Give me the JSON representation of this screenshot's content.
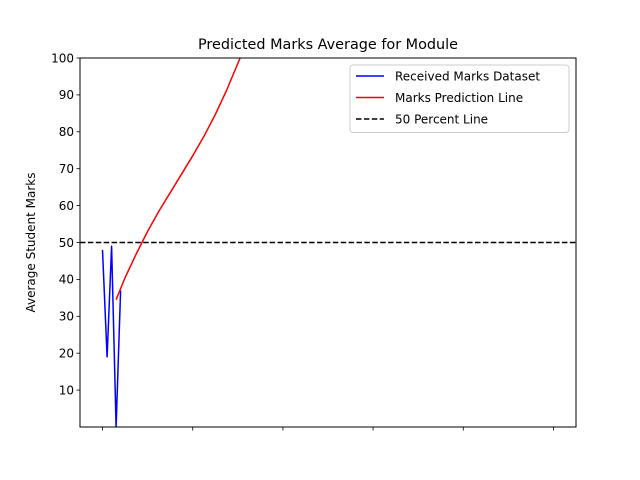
{
  "chart_data": {
    "type": "line",
    "title": "Predicted Marks Average for Module",
    "xlabel": "",
    "ylabel": "Average Student Marks",
    "ylim": [
      0,
      100
    ],
    "xlim": [
      -0.5,
      10.5
    ],
    "y_ticks": [
      10,
      20,
      30,
      40,
      50,
      60,
      70,
      80,
      90,
      100
    ],
    "x_ticks": [
      0,
      2,
      4,
      6,
      8,
      10
    ],
    "x_tick_labels_shown": false,
    "grid": false,
    "legend_position": "top-right",
    "series": [
      {
        "name": "Received Marks Dataset",
        "color": "#0000ff",
        "style": "solid",
        "x": [
          0,
          0.1,
          0.2,
          0.3,
          0.4
        ],
        "y": [
          48,
          19,
          49,
          0,
          37
        ]
      },
      {
        "name": "Marks Prediction Line",
        "color": "#ff0000",
        "style": "solid",
        "x": [
          0.3,
          0.5,
          0.75,
          1.0,
          1.25,
          1.5,
          1.75,
          2.0,
          2.25,
          2.5,
          2.75,
          3.0,
          3.15
        ],
        "y": [
          34.5,
          40.5,
          47,
          53,
          58.5,
          63.5,
          68.5,
          73.5,
          78.8,
          84.7,
          91.2,
          98.5,
          103
        ]
      },
      {
        "name": "50 Percent Line",
        "color": "#000000",
        "style": "dashed",
        "x": [
          -0.5,
          10.5
        ],
        "y": [
          50,
          50
        ]
      }
    ]
  }
}
